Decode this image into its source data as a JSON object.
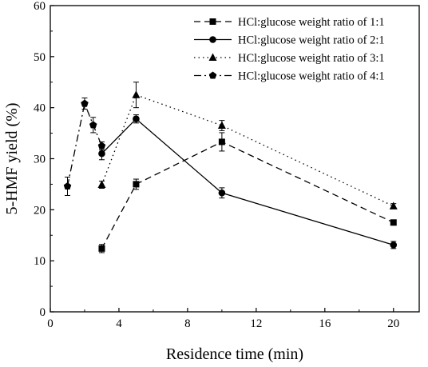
{
  "chart_data": {
    "type": "line",
    "xlabel": "Residence time (min)",
    "ylabel": "5-HMF yield (%)",
    "xlim": [
      0,
      21.5
    ],
    "ylim": [
      0,
      60
    ],
    "xticks": [
      0,
      4,
      8,
      12,
      16,
      20
    ],
    "xtick_labels": [
      "0",
      "4",
      "8",
      "12",
      "16",
      "20"
    ],
    "yticks": [
      0,
      10,
      20,
      30,
      40,
      50,
      60
    ],
    "ytick_labels": [
      "0",
      "10",
      "20",
      "30",
      "40",
      "50",
      "60"
    ],
    "grid": false,
    "legend_position": "top-right",
    "series": [
      {
        "name": "HCl:glucose weight ratio of 1:1",
        "marker": "square",
        "line_style": "dashed",
        "x": [
          3,
          5,
          10,
          20
        ],
        "y": [
          12.4,
          25.0,
          33.3,
          17.5
        ],
        "err": [
          0.8,
          1.0,
          1.8,
          0.4
        ]
      },
      {
        "name": "HCl:glucose weight ratio of 2:1",
        "marker": "circle",
        "line_style": "solid",
        "x": [
          3,
          5,
          10,
          20
        ],
        "y": [
          31.0,
          37.8,
          23.3,
          13.1
        ],
        "err": [
          1.2,
          0.8,
          1.0,
          0.7
        ]
      },
      {
        "name": "HCl:glucose weight ratio of 3:1",
        "marker": "triangle",
        "line_style": "dotted",
        "x": [
          3,
          5,
          10,
          20
        ],
        "y": [
          24.9,
          42.5,
          36.5,
          20.7
        ],
        "err": [
          0.7,
          2.5,
          1.0,
          0.5
        ]
      },
      {
        "name": "HCl:glucose weight ratio of 4:1",
        "marker": "pentagon",
        "line_style": "dash-dot",
        "x": [
          1,
          2,
          2.5,
          3
        ],
        "y": [
          24.6,
          40.8,
          36.6,
          32.5
        ],
        "err": [
          1.8,
          1.1,
          1.5,
          0.8
        ]
      }
    ]
  }
}
